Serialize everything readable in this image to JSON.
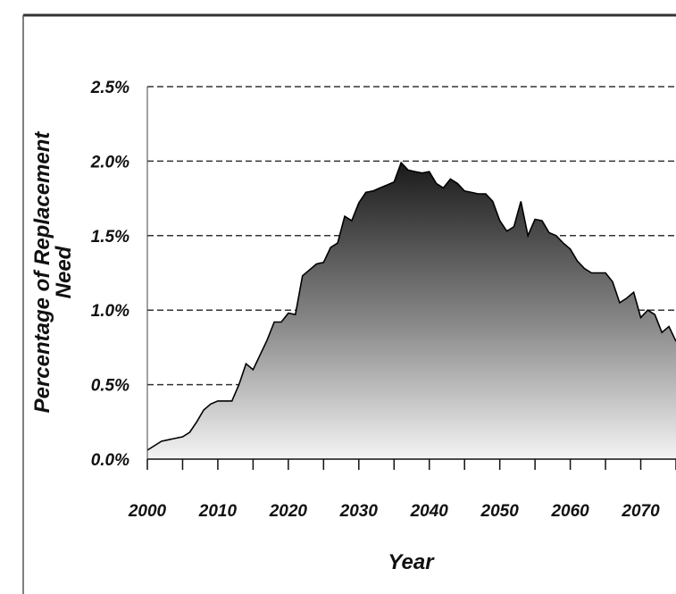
{
  "chart_data": {
    "type": "area",
    "title": "",
    "xlabel": "Year",
    "ylabel": "Percentage of Replacement Need",
    "ylabel_lines": [
      "Percentage of Replacement",
      "Need"
    ],
    "xlim": [
      2000,
      2075
    ],
    "ylim": [
      0,
      2.5
    ],
    "x_ticks": [
      2000,
      2010,
      2020,
      2030,
      2040,
      2050,
      2060,
      2070
    ],
    "x_tick_labels": [
      "2000",
      "2010",
      "2020",
      "2030",
      "2040",
      "2050",
      "2060",
      "2070"
    ],
    "y_ticks": [
      0,
      0.5,
      1.0,
      1.5,
      2.0,
      2.5
    ],
    "y_tick_labels": [
      "0.0%",
      "0.5%",
      "1.0%",
      "1.5%",
      "2.0%",
      "2.5%"
    ],
    "grid": "horizontal dashed",
    "legend": "none",
    "colors": {
      "fill_top": "#1a1a1a",
      "fill_bottom": "#f4f4f4",
      "line": "#000000",
      "grid": "#333333"
    },
    "x": [
      2000,
      2001,
      2002,
      2003,
      2004,
      2005,
      2006,
      2007,
      2008,
      2009,
      2010,
      2011,
      2012,
      2013,
      2014,
      2015,
      2016,
      2017,
      2018,
      2019,
      2020,
      2021,
      2022,
      2023,
      2024,
      2025,
      2026,
      2027,
      2028,
      2029,
      2030,
      2031,
      2032,
      2033,
      2034,
      2035,
      2036,
      2037,
      2038,
      2039,
      2040,
      2041,
      2042,
      2043,
      2044,
      2045,
      2046,
      2047,
      2048,
      2049,
      2050,
      2051,
      2052,
      2053,
      2054,
      2055,
      2056,
      2057,
      2058,
      2059,
      2060,
      2061,
      2062,
      2063,
      2064,
      2065,
      2066,
      2067,
      2068,
      2069,
      2070,
      2071,
      2072,
      2073,
      2074,
      2075
    ],
    "y": [
      0.06,
      0.09,
      0.12,
      0.13,
      0.14,
      0.15,
      0.18,
      0.25,
      0.33,
      0.37,
      0.39,
      0.39,
      0.39,
      0.5,
      0.64,
      0.6,
      0.7,
      0.8,
      0.92,
      0.92,
      0.98,
      0.97,
      1.23,
      1.27,
      1.31,
      1.32,
      1.42,
      1.45,
      1.63,
      1.6,
      1.72,
      1.79,
      1.8,
      1.82,
      1.84,
      1.86,
      1.99,
      1.94,
      1.93,
      1.92,
      1.93,
      1.85,
      1.82,
      1.88,
      1.85,
      1.8,
      1.79,
      1.78,
      1.78,
      1.73,
      1.6,
      1.53,
      1.56,
      1.73,
      1.5,
      1.61,
      1.6,
      1.52,
      1.5,
      1.45,
      1.41,
      1.33,
      1.28,
      1.25,
      1.25,
      1.25,
      1.19,
      1.05,
      1.08,
      1.12,
      0.95,
      1.0,
      0.97,
      0.85,
      0.89,
      0.79
    ]
  }
}
